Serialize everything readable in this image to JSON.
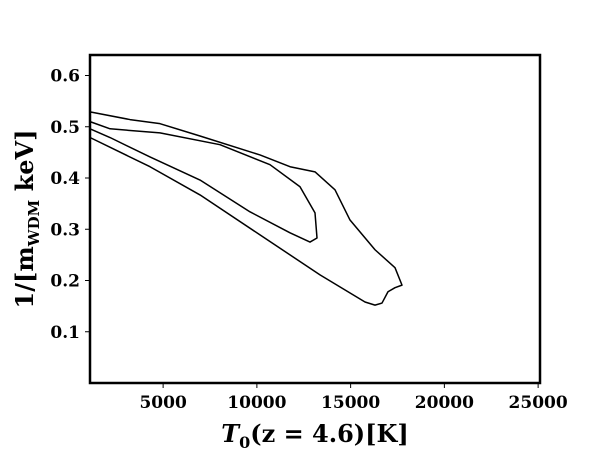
{
  "chart_data": {
    "type": "contour",
    "xlabel": [
      "T",
      "0",
      "(z = 4.6)[K]"
    ],
    "ylabel": [
      "1/[m",
      "WDM",
      " keV]"
    ],
    "xlim": [
      1100,
      25100
    ],
    "xticks": [
      5000,
      10000,
      15000,
      20000,
      25000
    ],
    "ylim": [
      0,
      0.64
    ],
    "yticks": [
      0.1,
      0.2,
      0.3,
      0.4,
      0.5,
      0.6
    ],
    "grid": false,
    "series": [
      {
        "color": "#000000",
        "x": [
          1100,
          3233,
          4833,
          6967,
          10167,
          11767,
          13100,
          14167,
          14967,
          16300,
          17367,
          17740,
          17367,
          16993,
          16673,
          16300,
          15767,
          13367,
          10167,
          6967,
          4300,
          1100
        ],
        "values": [
          0.529,
          0.514,
          0.506,
          0.482,
          0.445,
          0.422,
          0.412,
          0.377,
          0.318,
          0.26,
          0.225,
          0.191,
          0.186,
          0.178,
          0.156,
          0.152,
          0.158,
          0.211,
          0.289,
          0.367,
          0.422,
          0.479
        ]
      },
      {
        "color": "#000000",
        "x": [
          1100,
          2167,
          4833,
          8033,
          10700,
          12300,
          13100,
          13207,
          12833,
          11767,
          9633,
          6967,
          4300,
          2167,
          1100
        ],
        "values": [
          0.51,
          0.496,
          0.488,
          0.465,
          0.426,
          0.383,
          0.332,
          0.283,
          0.275,
          0.293,
          0.334,
          0.396,
          0.441,
          0.479,
          0.496
        ]
      }
    ]
  }
}
